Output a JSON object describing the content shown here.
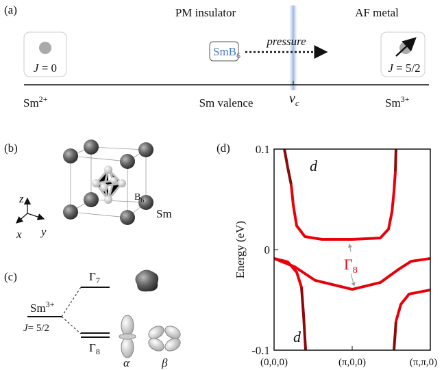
{
  "panel_a": {
    "label": "(a)",
    "left_phase": "PM insulator",
    "right_phase": "AF metal",
    "compound": "SmB",
    "compound_sub": "6",
    "arrow_label": "pressure",
    "left_j": "J",
    "left_j_value": " = 0",
    "right_j": "J",
    "right_j_value": " = 5/2",
    "left_ion": "Sm",
    "left_ion_sup": "2+",
    "axis_label": "Sm valence",
    "critical": "v",
    "critical_sub": "c",
    "right_ion": "Sm",
    "right_ion_sup": "3+"
  },
  "panel_b": {
    "label": "(b)",
    "b_label": "B",
    "b_sub": "6",
    "sm_label": "Sm",
    "axis_z": "z",
    "axis_x": "x",
    "axis_y": "y"
  },
  "panel_c": {
    "label": "(c)",
    "ion": "Sm",
    "ion_sup": "3+",
    "j": "J",
    "j_value": "= 5/2",
    "gamma7": "Γ",
    "gamma7_sub": "7",
    "gamma8": "Γ",
    "gamma8_sub": "8",
    "alpha": "α",
    "beta": "β"
  },
  "panel_d": {
    "type": "line",
    "label": "(d)",
    "y_label": "Energy (eV)",
    "xlim": [
      0,
      2
    ],
    "ylim": [
      -0.1,
      0.1
    ],
    "yticks": [
      0.1,
      0,
      -0.1
    ],
    "xticks": [
      {
        "value": 0,
        "label": "(0,0,0)"
      },
      {
        "value": 1,
        "label": "(π,0,0)"
      },
      {
        "value": 2,
        "label": "(π,π,0)"
      }
    ],
    "series": [
      {
        "color": "#8b0a0a",
        "x": [
          0.132,
          0.175,
          0.219
        ],
        "y": [
          0.1,
          0.0816,
          0.0646
        ]
      },
      {
        "color": "#e8000b",
        "x": [
          0.219,
          0.246,
          0.289,
          0.395,
          0.614,
          1.0,
          1.36,
          1.465,
          1.509,
          1.535,
          1.553
        ],
        "y": [
          0.0646,
          0.0442,
          0.0238,
          0.0129,
          0.0102,
          0.0102,
          0.0116,
          0.0204,
          0.0374,
          0.0578,
          0.0782
        ]
      },
      {
        "color": "#8b0a0a",
        "x": [
          1.553,
          1.561
        ],
        "y": [
          0.0782,
          0.1
        ]
      },
      {
        "color": "#e8000b",
        "x": [
          0,
          0.263,
          0.526,
          1.0,
          1.36,
          1.579,
          1.754,
          2.0
        ],
        "y": [
          -0.0088,
          -0.017,
          -0.0306,
          -0.0395,
          -0.0327,
          -0.0204,
          -0.0116,
          -0.0088
        ]
      },
      {
        "color": "#e8000b",
        "x": [
          0,
          0.175,
          0.289,
          0.351
        ],
        "y": [
          -0.0088,
          -0.0122,
          -0.0224,
          -0.0374
        ]
      },
      {
        "color": "#8b0a0a",
        "x": [
          0.351,
          0.377,
          0.404
        ],
        "y": [
          -0.0374,
          -0.0646,
          -0.1
        ]
      },
      {
        "color": "#8b0a0a",
        "x": [
          1.535,
          1.561
        ],
        "y": [
          -0.1,
          -0.0714
        ]
      },
      {
        "color": "#e8000b",
        "x": [
          1.561,
          1.623,
          1.728,
          2.0
        ],
        "y": [
          -0.0714,
          -0.0544,
          -0.0442,
          -0.0401
        ]
      }
    ],
    "d_top": "d",
    "d_bottom": "d",
    "gamma": "Γ",
    "gamma_sub": "8"
  }
}
